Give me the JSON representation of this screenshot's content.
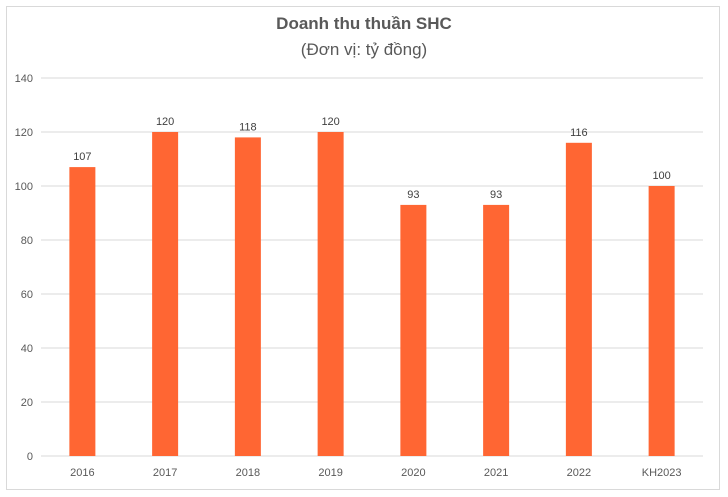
{
  "chart_data": {
    "type": "bar",
    "title": "Doanh thu thuần SHC",
    "subtitle": "(Đơn vị: tỷ đồng)",
    "categories": [
      "2016",
      "2017",
      "2018",
      "2019",
      "2020",
      "2021",
      "2022",
      "KH2023"
    ],
    "values": [
      107,
      120,
      118,
      120,
      93,
      93,
      116,
      100
    ],
    "data_labels": [
      "107",
      "120",
      "118",
      "120",
      "93",
      "93",
      "116",
      "100"
    ],
    "ylim": [
      0,
      140
    ],
    "yticks": [
      0,
      20,
      40,
      60,
      80,
      100,
      120,
      140
    ],
    "grid": true,
    "legend": "none",
    "bar_color": "#ff6633",
    "grid_color": "#d9d9d9"
  }
}
